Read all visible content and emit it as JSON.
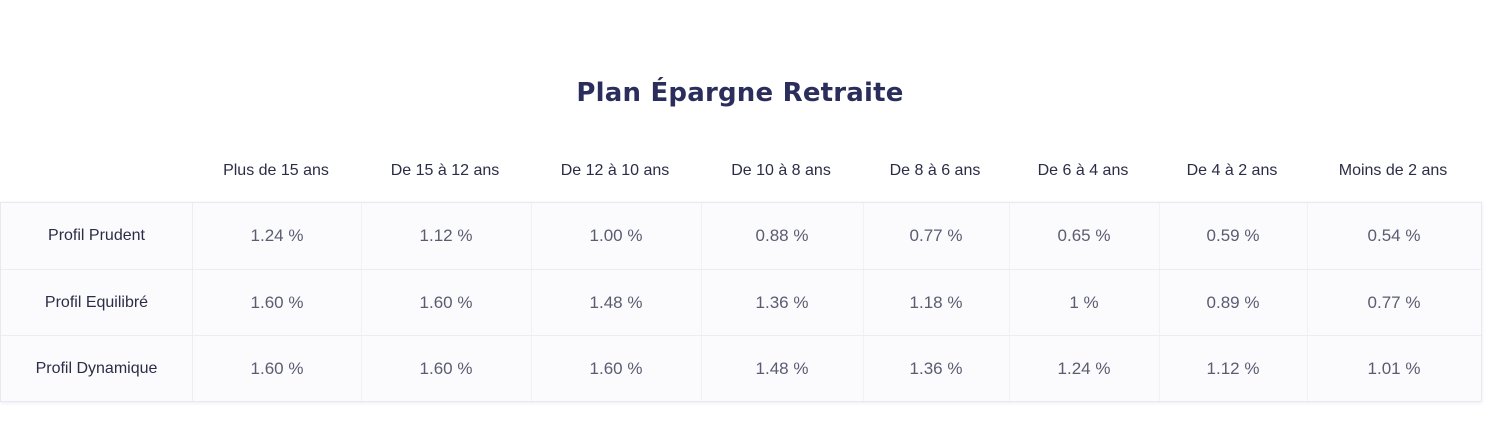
{
  "title": "Plan Épargne Retraite",
  "columns": [
    "Plus de 15 ans",
    "De 15 à 12 ans",
    "De 12 à 10 ans",
    "De 10 à 8 ans",
    "De 8 à 6 ans",
    "De 6 à 4 ans",
    "De 4 à 2 ans",
    "Moins de 2 ans"
  ],
  "rows": [
    {
      "label": "Profil Prudent",
      "values": [
        "1.24 %",
        "1.12 %",
        "1.00 %",
        "0.88 %",
        "0.77 %",
        "0.65 %",
        "0.59 %",
        "0.54 %"
      ]
    },
    {
      "label": "Profil Equilibré",
      "values": [
        "1.60 %",
        "1.60 %",
        "1.48 %",
        "1.36 %",
        "1.18 %",
        "1 %",
        "0.89 %",
        "0.77 %"
      ]
    },
    {
      "label": "Profil Dynamique",
      "values": [
        "1.60 %",
        "1.60 %",
        "1.60 %",
        "1.48 %",
        "1.36 %",
        "1.24 %",
        "1.12 %",
        "1.01 %"
      ]
    }
  ]
}
